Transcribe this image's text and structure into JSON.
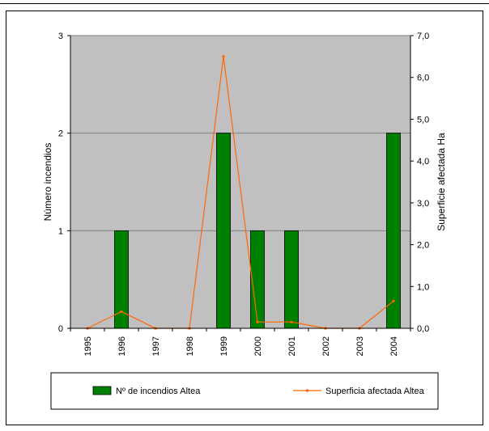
{
  "chart_data": {
    "type": "bar",
    "title": "",
    "categories": [
      "1995",
      "1996",
      "1997",
      "1998",
      "1999",
      "2000",
      "2001",
      "2002",
      "2003",
      "2004"
    ],
    "series": [
      {
        "name": "Nº de incendios Altea",
        "kind": "bar",
        "axis": "left",
        "color": "#008000",
        "values": [
          0,
          1,
          0,
          0,
          2,
          1,
          1,
          0,
          0,
          2
        ]
      },
      {
        "name": "Superficia afectada Altea",
        "kind": "line",
        "axis": "right",
        "color": "#ff6600",
        "values": [
          0,
          0.4,
          0,
          0,
          6.5,
          0.15,
          0.15,
          0,
          0,
          0.65
        ]
      }
    ],
    "ylabel": "Número incendios",
    "y2label": "Superficie afectada Ha",
    "ylim": [
      0,
      3
    ],
    "y2lim": [
      0,
      7
    ],
    "yticks": [
      "0",
      "1",
      "2",
      "3"
    ],
    "y2ticks": [
      "0,0",
      "1,0",
      "2,0",
      "3,0",
      "4,0",
      "5,0",
      "6,0",
      "7,0"
    ],
    "grid": true,
    "plot_background": "#c0c0c0",
    "legend_position": "bottom"
  }
}
